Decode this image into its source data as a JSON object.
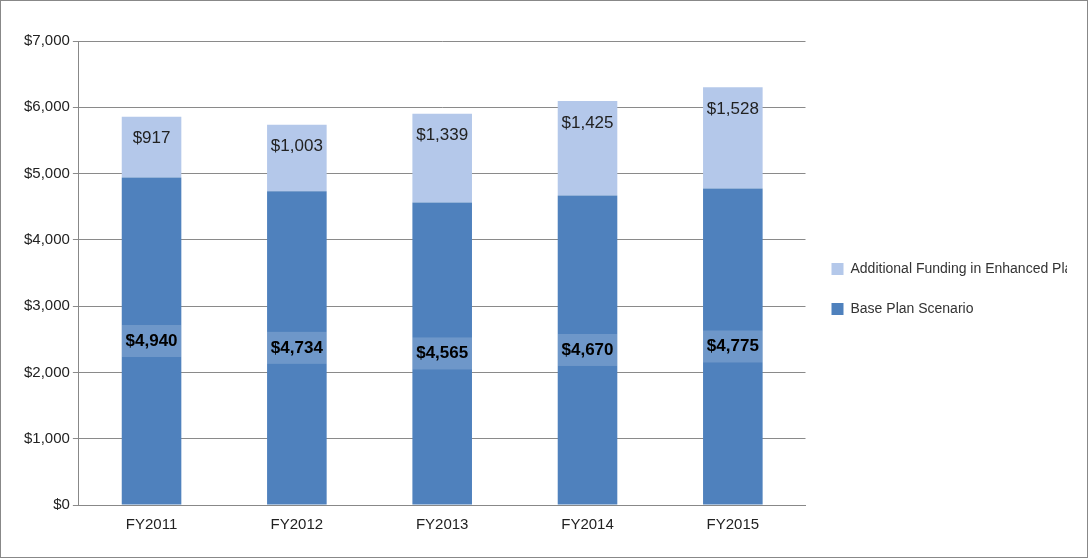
{
  "chart_data": {
    "type": "bar",
    "stacked": true,
    "data_labels": true,
    "grid": true,
    "legend": "right",
    "categories": [
      "FY2011",
      "FY2012",
      "FY2013",
      "FY2014",
      "FY2015"
    ],
    "series": [
      {
        "name": "Base Plan Scenario",
        "color": "#4f81bd",
        "values": [
          4940,
          4734,
          4565,
          4670,
          4775
        ],
        "value_labels": [
          "$4,940",
          "$4,734",
          "$4,565",
          "$4,670",
          "$4,775"
        ]
      },
      {
        "name": "Additional Funding in Enhanced Plan Scenario",
        "color": "#b4c8ea",
        "values": [
          917,
          1003,
          1339,
          1425,
          1528
        ],
        "value_labels": [
          "$917",
          "$1,003",
          "$1,339",
          "$1,425",
          "$1,528"
        ]
      }
    ],
    "ylim": [
      0,
      7000
    ],
    "yticks": [
      {
        "value": 0,
        "label": "$0"
      },
      {
        "value": 1000,
        "label": "$1,000"
      },
      {
        "value": 2000,
        "label": "$2,000"
      },
      {
        "value": 3000,
        "label": "$3,000"
      },
      {
        "value": 4000,
        "label": "$4,000"
      },
      {
        "value": 5000,
        "label": "$5,000"
      },
      {
        "value": 6000,
        "label": "$6,000"
      },
      {
        "value": 7000,
        "label": "$7,000"
      }
    ]
  }
}
